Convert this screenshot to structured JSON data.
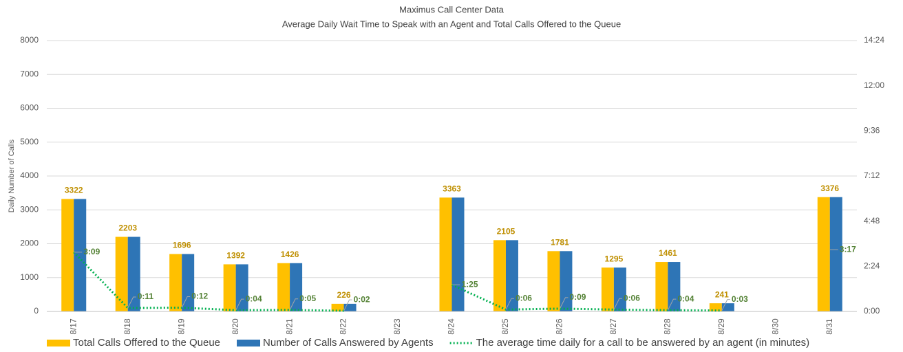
{
  "chart_data": {
    "type": "bar",
    "title": "Maximus Call Center Data",
    "subtitle": "Average Daily Wait Time to Speak with an Agent and Total Calls Offered to the Queue",
    "y_label": "Daily Number of Calls",
    "categories": [
      "8/17",
      "8/18",
      "8/19",
      "8/20",
      "8/21",
      "8/22",
      "8/23",
      "8/24",
      "8/25",
      "8/26",
      "8/27",
      "8/28",
      "8/29",
      "8/30",
      "8/31"
    ],
    "series": [
      {
        "name": "Total Calls Offered to the Queue",
        "color": "#ffc000",
        "show_labels": true,
        "values": [
          3322,
          2203,
          1696,
          1392,
          1426,
          226,
          null,
          3363,
          2105,
          1781,
          1295,
          1461,
          241,
          null,
          3376
        ]
      },
      {
        "name": "Number of Calls Answered by Agents",
        "color": "#2e75b6",
        "values": [
          3322,
          2203,
          1696,
          1392,
          1426,
          226,
          null,
          3363,
          2105,
          1781,
          1295,
          1461,
          241,
          null,
          3376
        ]
      },
      {
        "name": "The average time daily for a call to be answered by an agent (in minutes)",
        "color": "#00b050",
        "type": "line",
        "axis": "y2",
        "show_labels": true,
        "values": [
          3.15,
          0.18333,
          0.2,
          0.06667,
          0.08333,
          0.03333,
          null,
          1.41667,
          0.1,
          0.15,
          0.1,
          0.06667,
          0.05,
          null,
          3.28333
        ],
        "value_labels": [
          "3:09",
          "0:11",
          "0:12",
          "0:04",
          "0:05",
          "0:02",
          null,
          "1:25",
          "0:06",
          "0:09",
          "0:06",
          "0:04",
          "0:03",
          null,
          "3:17"
        ]
      }
    ],
    "ylim": [
      0,
      8000
    ],
    "yticks": [
      0,
      1000,
      2000,
      3000,
      4000,
      5000,
      6000,
      7000,
      8000
    ],
    "y2lim": [
      0,
      14.4
    ],
    "y2ticks": [
      {
        "value": 0,
        "label": "0:00"
      },
      {
        "value": 2.4,
        "label": "2:24"
      },
      {
        "value": 4.8,
        "label": "4:48"
      },
      {
        "value": 7.2,
        "label": "7:12"
      },
      {
        "value": 9.6,
        "label": "9:36"
      },
      {
        "value": 12,
        "label": "12:00"
      },
      {
        "value": 14.4,
        "label": "14:24"
      }
    ],
    "grid": true,
    "legend": "bottom"
  }
}
